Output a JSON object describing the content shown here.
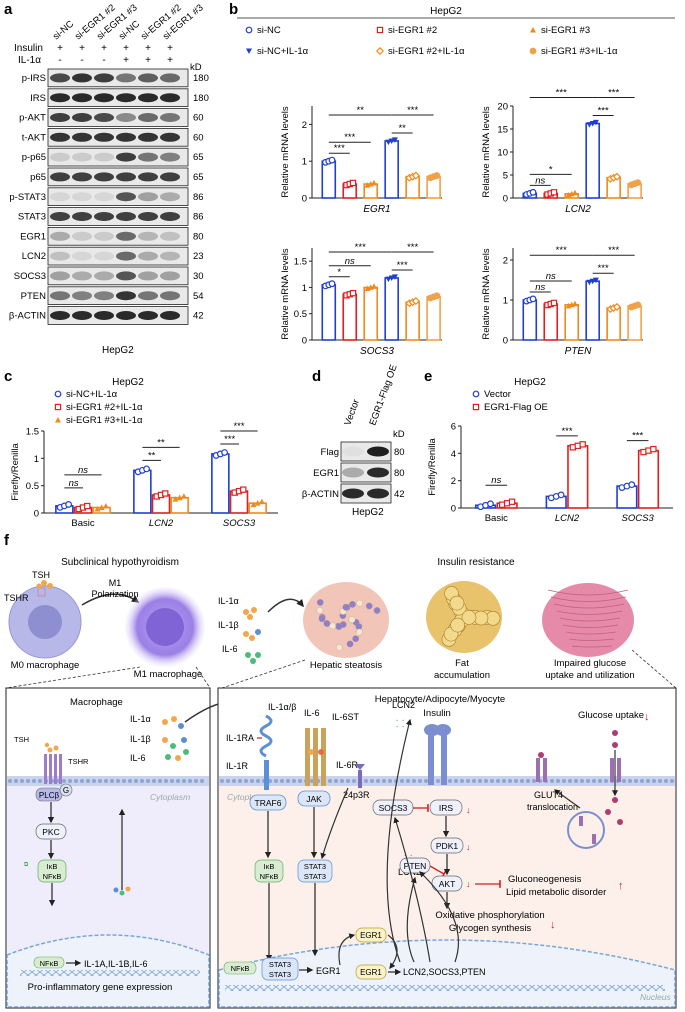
{
  "panel_labels": {
    "a": "a",
    "b": "b",
    "c": "c",
    "d": "d",
    "e": "e",
    "f": "f"
  },
  "panel_a": {
    "lanes": [
      "si-NC",
      "si-EGR1 #2",
      "si-EGR1 #3",
      "si-NC",
      "si-EGR1 #2",
      "si-EGR1 #3"
    ],
    "insulin_label": "Insulin",
    "insulin": [
      "+",
      "+",
      "+",
      "+",
      "+",
      "+"
    ],
    "il1a_label": "IL-1α",
    "il1a": [
      "-",
      "-",
      "-",
      "+",
      "+",
      "+"
    ],
    "kd": "kD",
    "blots": [
      {
        "name": "p-IRS",
        "kd": "180"
      },
      {
        "name": "IRS",
        "kd": "180"
      },
      {
        "name": "p-AKT",
        "kd": "60"
      },
      {
        "name": "t-AKT",
        "kd": "60"
      },
      {
        "name": "p-p65",
        "kd": "65"
      },
      {
        "name": "p65",
        "kd": "65"
      },
      {
        "name": "p-STAT3",
        "kd": "86"
      },
      {
        "name": "STAT3",
        "kd": "86"
      },
      {
        "name": "EGR1",
        "kd": "80"
      },
      {
        "name": "LCN2",
        "kd": "23"
      },
      {
        "name": "SOCS3",
        "kd": "30"
      },
      {
        "name": "PTEN",
        "kd": "54"
      },
      {
        "name": "β-ACTIN",
        "kd": "42"
      }
    ],
    "cell": "HepG2"
  },
  "panel_b": {
    "title": "HepG2",
    "legend": [
      "si-NC",
      "si-EGR1 #2",
      "si-EGR1 #3",
      "si-NC+IL-1α",
      "si-EGR1 #2+IL-1α",
      "si-EGR1 #3+IL-1α"
    ],
    "ylabel": "Relative mRNA levels"
  },
  "panel_c": {
    "title": "HepG2",
    "legend": [
      "si-NC+IL-1α",
      "si-EGR1 #2+IL-1α",
      "si-EGR1 #3+IL-1α"
    ],
    "ylabel": "Firefly/Renilla"
  },
  "panel_d": {
    "lanes": [
      "Vector",
      "EGR1-Flag OE"
    ],
    "kd": "kD",
    "blots": [
      {
        "name": "Flag",
        "kd": "80"
      },
      {
        "name": "EGR1",
        "kd": "80"
      },
      {
        "name": "β-ACTIN",
        "kd": "42"
      }
    ],
    "cell": "HepG2"
  },
  "panel_e": {
    "title": "HepG2",
    "legend": [
      "Vector",
      "EGR1-Flag OE"
    ],
    "ylabel": "Firefly/Renilla"
  },
  "chart_data": [
    {
      "type": "bar",
      "id": "b1",
      "gene": "EGR1",
      "categories": [
        "si-NC",
        "si-EGR1 #2",
        "si-EGR1 #3",
        "si-NC+IL-1α",
        "si-EGR1 #2+IL-1α",
        "si-EGR1 #3+IL-1α"
      ],
      "values": [
        1.0,
        0.38,
        0.38,
        1.55,
        0.58,
        0.58
      ],
      "ylim": [
        0,
        2.5
      ],
      "yticks": [
        0,
        1,
        2
      ],
      "ytick_labels": [
        "0",
        "1",
        "2"
      ],
      "sig": [
        {
          "a": 0,
          "b": 1,
          "label": "***"
        },
        {
          "a": 0,
          "b": 2,
          "label": "***"
        },
        {
          "a": 0,
          "b": 3,
          "label": "**"
        },
        {
          "a": 3,
          "b": 4,
          "label": "**"
        },
        {
          "a": 3,
          "b": 5,
          "label": "***"
        }
      ]
    },
    {
      "type": "bar",
      "id": "b2",
      "gene": "LCN2",
      "categories": [
        "si-NC",
        "si-EGR1 #2",
        "si-EGR1 #3",
        "si-NC+IL-1α",
        "si-EGR1 #2+IL-1α",
        "si-EGR1 #3+IL-1α"
      ],
      "values": [
        1.0,
        1.0,
        0.9,
        16.2,
        4.4,
        3.1
      ],
      "ylim": [
        0,
        20
      ],
      "yticks": [
        0,
        5,
        10,
        15,
        20
      ],
      "ytick_labels": [
        "0",
        "5",
        "10",
        "15",
        "20"
      ],
      "sig": [
        {
          "a": 0,
          "b": 1,
          "label": "ns"
        },
        {
          "a": 0,
          "b": 2,
          "label": "*"
        },
        {
          "a": 0,
          "b": 3,
          "label": "***"
        },
        {
          "a": 3,
          "b": 4,
          "label": "***"
        },
        {
          "a": 3,
          "b": 5,
          "label": "***"
        }
      ]
    },
    {
      "type": "bar",
      "id": "b3",
      "gene": "SOCS3",
      "categories": [
        "si-NC",
        "si-EGR1 #2",
        "si-EGR1 #3",
        "si-NC+IL-1α",
        "si-EGR1 #2+IL-1α",
        "si-EGR1 #3+IL-1α"
      ],
      "values": [
        1.05,
        0.87,
        1.0,
        1.18,
        0.72,
        0.82
      ],
      "ylim": [
        0,
        1.75
      ],
      "yticks": [
        0,
        0.5,
        1.0,
        1.5
      ],
      "ytick_labels": [
        "0",
        "0.5",
        "1",
        "1.5"
      ],
      "sig": [
        {
          "a": 0,
          "b": 1,
          "label": "*"
        },
        {
          "a": 0,
          "b": 2,
          "label": "ns"
        },
        {
          "a": 0,
          "b": 3,
          "label": "***"
        },
        {
          "a": 3,
          "b": 4,
          "label": "***"
        },
        {
          "a": 3,
          "b": 5,
          "label": "***"
        }
      ]
    },
    {
      "type": "bar",
      "id": "b4",
      "gene": "PTEN",
      "categories": [
        "si-NC",
        "si-EGR1 #2",
        "si-EGR1 #3",
        "si-NC+IL-1α",
        "si-EGR1 #2+IL-1α",
        "si-EGR1 #3+IL-1α"
      ],
      "values": [
        1.0,
        0.9,
        0.88,
        1.47,
        0.8,
        0.85
      ],
      "ylim": [
        0,
        2.3
      ],
      "yticks": [
        0,
        1,
        2
      ],
      "ytick_labels": [
        "0",
        "1",
        "2"
      ],
      "sig": [
        {
          "a": 0,
          "b": 1,
          "label": "ns"
        },
        {
          "a": 0,
          "b": 2,
          "label": "ns"
        },
        {
          "a": 0,
          "b": 3,
          "label": "***"
        },
        {
          "a": 3,
          "b": 4,
          "label": "***"
        },
        {
          "a": 3,
          "b": 5,
          "label": "***"
        }
      ]
    },
    {
      "type": "bar",
      "id": "c",
      "groups": [
        "Basic",
        "LCN2",
        "SOCS3"
      ],
      "series": [
        "si-NC+IL-1α",
        "si-EGR1 #2+IL-1α",
        "si-EGR1 #3+IL-1α"
      ],
      "values": [
        [
          0.13,
          0.1,
          0.1
        ],
        [
          0.78,
          0.33,
          0.28
        ],
        [
          1.08,
          0.4,
          0.18
        ]
      ],
      "ylim": [
        0,
        1.5
      ],
      "yticks": [
        0,
        0.5,
        1.0,
        1.5
      ],
      "ytick_labels": [
        "0",
        "0.5",
        "1",
        "1.5"
      ],
      "sig": [
        {
          "g": 0,
          "a": 0,
          "b": 1,
          "label": "ns"
        },
        {
          "g": 0,
          "a": 0,
          "b": 2,
          "label": "ns"
        },
        {
          "g": 1,
          "a": 0,
          "b": 1,
          "label": "**"
        },
        {
          "g": 1,
          "a": 0,
          "b": 2,
          "label": "**"
        },
        {
          "g": 2,
          "a": 0,
          "b": 1,
          "label": "***"
        },
        {
          "g": 2,
          "a": 0,
          "b": 2,
          "label": "***"
        }
      ]
    },
    {
      "type": "bar",
      "id": "e",
      "groups": [
        "Basic",
        "LCN2",
        "SOCS3"
      ],
      "series": [
        "Vector",
        "EGR1-Flag OE"
      ],
      "values": [
        [
          0.2,
          0.35
        ],
        [
          0.85,
          4.55
        ],
        [
          1.6,
          4.2
        ]
      ],
      "ylim": [
        0,
        6
      ],
      "yticks": [
        0,
        2,
        4,
        6
      ],
      "ytick_labels": [
        "0",
        "2",
        "4",
        "6"
      ],
      "sig": [
        {
          "g": 0,
          "a": 0,
          "b": 1,
          "label": "ns"
        },
        {
          "g": 1,
          "a": 0,
          "b": 1,
          "label": "***"
        },
        {
          "g": 2,
          "a": 0,
          "b": 1,
          "label": "***"
        }
      ]
    }
  ],
  "panel_f": {
    "top": {
      "title_left": "Subclinical hypothyroidism",
      "tsh": "TSH",
      "tshr": "TSHR",
      "m1_polarization_1": "M1",
      "m1_polarization_2": "Polarization",
      "m0": "M0 macrophage",
      "m1": "M1 macrophage",
      "il1a": "IL-1α",
      "il1b": "IL-1β",
      "il6": "IL-6",
      "title_right": "Insulin resistance",
      "hepatic": "Hepatic steatosis",
      "fat_1": "Fat",
      "fat_2": "accumulation",
      "glucose_1": "Impaired glucose",
      "glucose_2": "uptake and utilization"
    },
    "left": {
      "title": "Macrophage",
      "tsh": "TSH",
      "tshr": "TSHR",
      "g": "G",
      "plcb": "PLCβ",
      "pkc": "PKC",
      "ikb": "IκB",
      "nfkb": "NFκB",
      "nfkb2": "NFκB",
      "cyto": "Cytoplasm",
      "genes": "IL-1A,IL-1B,IL-6",
      "expression": "Pro-inflammatory gene expression",
      "il1a": "IL-1α",
      "il1b": "IL-1β",
      "il6": "IL-6"
    },
    "right": {
      "title": "Hepatocyte/Adipocyte/Myocyte",
      "insulin": "Insulin",
      "il1ab": "IL-1α/β",
      "il1ra": "IL-1RA",
      "il1r": "IL-1R",
      "il6": "IL-6",
      "il6st": "IL-6ST",
      "il6r": "IL-6R",
      "lcn2_top": "LCN2",
      "p24": "24p3R",
      "lcn2_mid": "LCN2",
      "cyto": "Cytoplasm",
      "traf6": "TRAF6",
      "jak": "JAK",
      "socs3": "SOCS3",
      "irs": "IRS",
      "pdk1": "PDK1",
      "pten": "PTEN",
      "akt": "AKT",
      "ikb": "IκB",
      "nfkb": "NFκB",
      "stat3a": "STAT3",
      "stat3b": "STAT3",
      "stat3c": "STAT3",
      "stat3d": "STAT3",
      "egr1_box": "EGR1",
      "egr1_box2": "EGR1",
      "egr1_gene": "EGR1",
      "targets": "LCN2,SOCS3,PTEN",
      "nfkb_n": "NFκB",
      "nucleus": "Nucleus",
      "glucose_uptake": "Glucose uptake",
      "glut4_1": "GLUT4",
      "glut4_2": "translocation",
      "gluconeo": "Gluconeogenesis",
      "lipid": "Lipid metabolic disorder",
      "oxphos": "Oxidative phosphorylation",
      "glycogen": "Glycogen synthesis"
    }
  }
}
